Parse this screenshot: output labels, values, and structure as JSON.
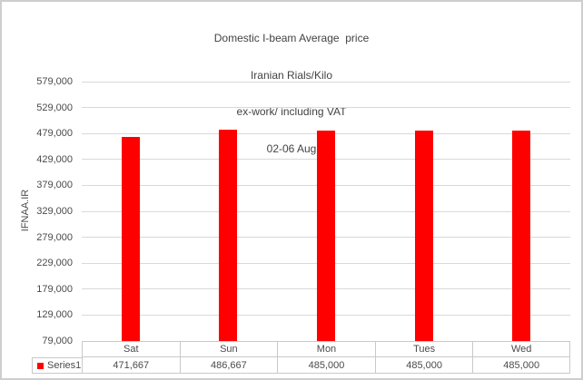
{
  "title": {
    "lines": [
      "Domestic I-beam Average  price",
      "Iranian Rials/Kilo",
      "ex-work/ including VAT",
      "02-06 Aug"
    ]
  },
  "y_axis_title": "IFNAA.IR",
  "legend": {
    "series_label": "Series1"
  },
  "colors": {
    "bar": "#ff0000",
    "gridline": "#d9d9d9",
    "table_border": "#c9c9c9",
    "text": "#4a4a4a",
    "canvas_border": "#cfcdcd"
  },
  "chart_data": {
    "type": "bar",
    "title": "Domestic I-beam Average price — Iranian Rials/Kilo — ex-work/ including VAT — 02-06 Aug",
    "ylabel": "IFNAA.IR",
    "categories": [
      "Sat",
      "Sun",
      "Mon",
      "Tues",
      "Wed"
    ],
    "series": [
      {
        "name": "Series1",
        "values": [
          471667,
          486667,
          485000,
          485000,
          485000
        ]
      }
    ],
    "value_labels": [
      "471,667",
      "486,667",
      "485,000",
      "485,000",
      "485,000"
    ],
    "ylim": [
      79000,
      579000
    ],
    "ytick_step": 50000,
    "ytick_labels": [
      "579,000",
      "529,000",
      "479,000",
      "429,000",
      "379,000",
      "329,000",
      "279,000",
      "229,000",
      "179,000",
      "129,000",
      "79,000"
    ],
    "grid": true,
    "legend_position": "bottom-left data table"
  }
}
